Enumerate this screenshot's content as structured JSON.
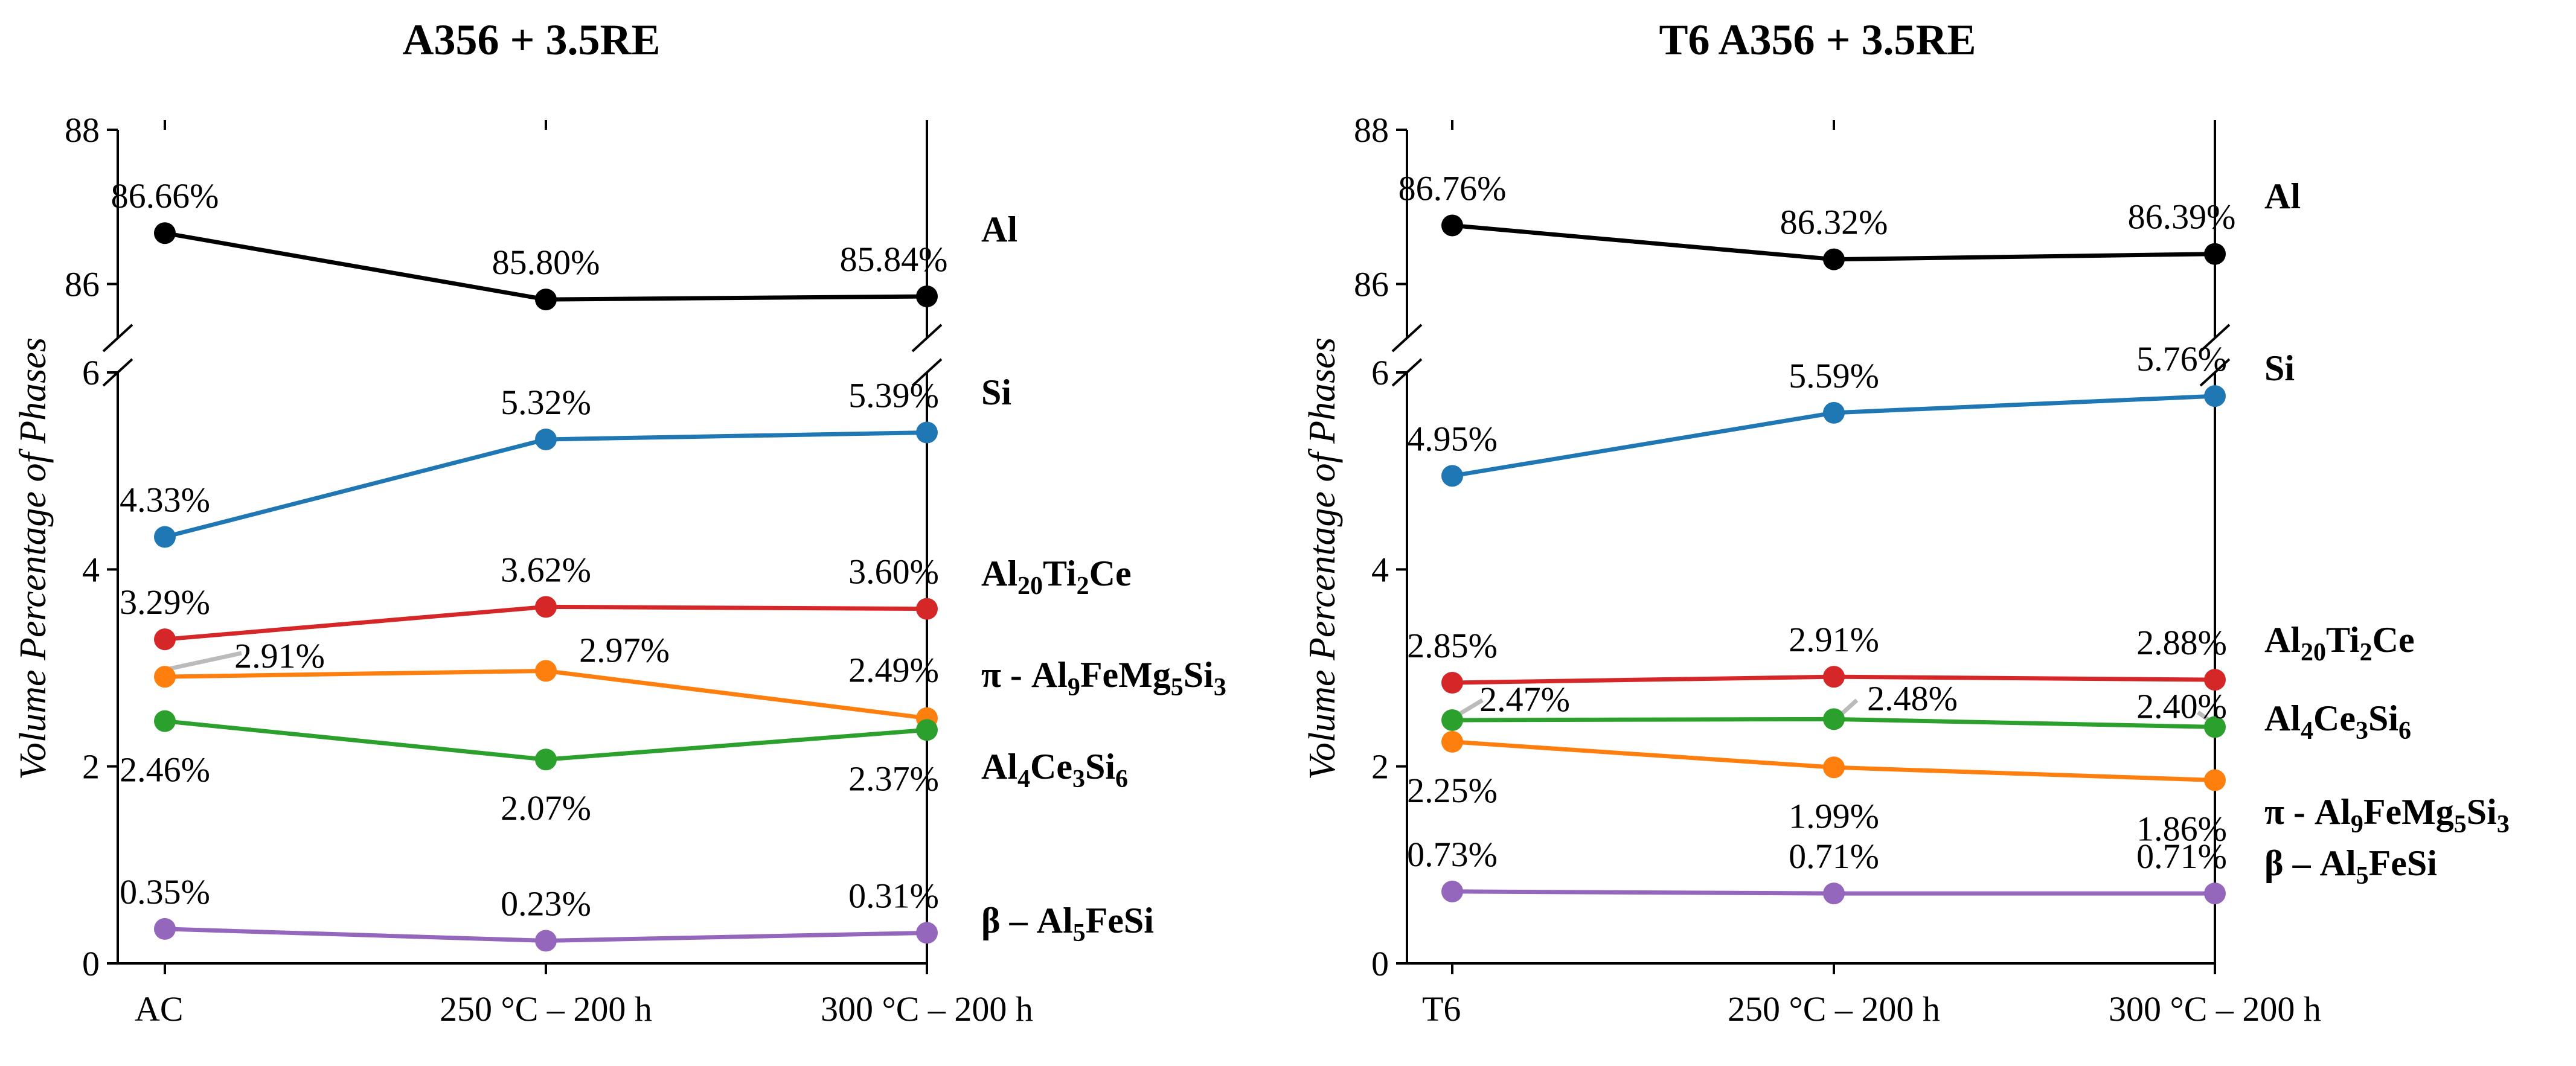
{
  "chart_data": [
    {
      "type": "line",
      "title": "A356 + 3.5RE",
      "ylabel": "Volume Percentage of Phases",
      "categories": [
        "AC",
        "250 °C – 200 h",
        "300 °C – 200 h"
      ],
      "upper_ylim": [
        85.3,
        88
      ],
      "upper_yticks": [
        "86",
        "88"
      ],
      "lower_ylim": [
        0,
        6
      ],
      "lower_yticks": [
        "0",
        "2",
        "4",
        "6"
      ],
      "series": [
        {
          "name": "Al",
          "label": "Al",
          "color": "#000000",
          "values": [
            86.66,
            85.8,
            85.84
          ],
          "value_labels": [
            "86.66%",
            "85.80%",
            "85.84%"
          ]
        },
        {
          "name": "Si",
          "label": "Si",
          "color": "#1f77b4",
          "values": [
            4.33,
            5.32,
            5.39
          ],
          "value_labels": [
            "4.33%",
            "5.32%",
            "5.39%"
          ]
        },
        {
          "name": "Al20Ti2Ce",
          "label_parts": [
            [
              "Al",
              ""
            ],
            [
              "20",
              "sub"
            ],
            [
              "Ti",
              ""
            ],
            [
              "2",
              "sub"
            ],
            [
              "Ce",
              ""
            ]
          ],
          "color": "#d62728",
          "values": [
            3.29,
            3.62,
            3.6
          ],
          "value_labels": [
            "3.29%",
            "3.62%",
            "3.60%"
          ]
        },
        {
          "name": "pi-Al9FeMg5Si3",
          "label_parts": [
            [
              "π - Al",
              ""
            ],
            [
              "9",
              "sub"
            ],
            [
              "FeMg",
              ""
            ],
            [
              "5",
              "sub"
            ],
            [
              "Si",
              ""
            ],
            [
              "3",
              "sub"
            ]
          ],
          "color": "#ff7f0e",
          "values": [
            2.91,
            2.97,
            2.49
          ],
          "value_labels": [
            "2.91%",
            "2.97%",
            "2.49%"
          ]
        },
        {
          "name": "Al4Ce3Si6",
          "label_parts": [
            [
              "Al",
              ""
            ],
            [
              "4",
              "sub"
            ],
            [
              "Ce",
              ""
            ],
            [
              "3",
              "sub"
            ],
            [
              "Si",
              ""
            ],
            [
              "6",
              "sub"
            ]
          ],
          "color": "#2ca02c",
          "values": [
            2.46,
            2.07,
            2.37
          ],
          "value_labels": [
            "2.46%",
            "2.07%",
            "2.37%"
          ]
        },
        {
          "name": "beta-Al5FeSi",
          "label_parts": [
            [
              "β – Al",
              ""
            ],
            [
              "5",
              "sub"
            ],
            [
              "FeSi",
              ""
            ]
          ],
          "color": "#9467bd",
          "values": [
            0.35,
            0.23,
            0.31
          ],
          "value_labels": [
            "0.35%",
            "0.23%",
            "0.31%"
          ]
        }
      ]
    },
    {
      "type": "line",
      "title": "T6 A356 + 3.5RE",
      "ylabel": "Volume Percentage of Phases",
      "categories": [
        "T6",
        "250 °C – 200 h",
        "300 °C – 200 h"
      ],
      "upper_ylim": [
        85.3,
        88
      ],
      "upper_yticks": [
        "86",
        "88"
      ],
      "lower_ylim": [
        0,
        6
      ],
      "lower_yticks": [
        "0",
        "2",
        "4",
        "6"
      ],
      "series": [
        {
          "name": "Al",
          "label": "Al",
          "color": "#000000",
          "values": [
            86.76,
            86.32,
            86.39
          ],
          "value_labels": [
            "86.76%",
            "86.32%",
            "86.39%"
          ]
        },
        {
          "name": "Si",
          "label": "Si",
          "color": "#1f77b4",
          "values": [
            4.95,
            5.59,
            5.76
          ],
          "value_labels": [
            "4.95%",
            "5.59%",
            "5.76%"
          ]
        },
        {
          "name": "Al20Ti2Ce",
          "label_parts": [
            [
              "Al",
              ""
            ],
            [
              "20",
              "sub"
            ],
            [
              "Ti",
              ""
            ],
            [
              "2",
              "sub"
            ],
            [
              "Ce",
              ""
            ]
          ],
          "color": "#d62728",
          "values": [
            2.85,
            2.91,
            2.88
          ],
          "value_labels": [
            "2.85%",
            "2.91%",
            "2.88%"
          ]
        },
        {
          "name": "Al4Ce3Si6",
          "label_parts": [
            [
              "Al",
              ""
            ],
            [
              "4",
              "sub"
            ],
            [
              "Ce",
              ""
            ],
            [
              "3",
              "sub"
            ],
            [
              "Si",
              ""
            ],
            [
              "6",
              "sub"
            ]
          ],
          "color": "#2ca02c",
          "values": [
            2.47,
            2.48,
            2.4
          ],
          "value_labels": [
            "2.47%",
            "2.48%",
            "2.40%"
          ]
        },
        {
          "name": "pi-Al9FeMg5Si3",
          "label_parts": [
            [
              "π - Al",
              ""
            ],
            [
              "9",
              "sub"
            ],
            [
              "FeMg",
              ""
            ],
            [
              "5",
              "sub"
            ],
            [
              "Si",
              ""
            ],
            [
              "3",
              "sub"
            ]
          ],
          "color": "#ff7f0e",
          "values": [
            2.25,
            1.99,
            1.86
          ],
          "value_labels": [
            "2.25%",
            "1.99%",
            "1.86%"
          ]
        },
        {
          "name": "beta-Al5FeSi",
          "label_parts": [
            [
              "β – Al",
              ""
            ],
            [
              "5",
              "sub"
            ],
            [
              "FeSi",
              ""
            ]
          ],
          "color": "#9467bd",
          "values": [
            0.73,
            0.71,
            0.71
          ],
          "value_labels": [
            "0.73%",
            "0.71%",
            "0.71%"
          ]
        }
      ]
    }
  ]
}
